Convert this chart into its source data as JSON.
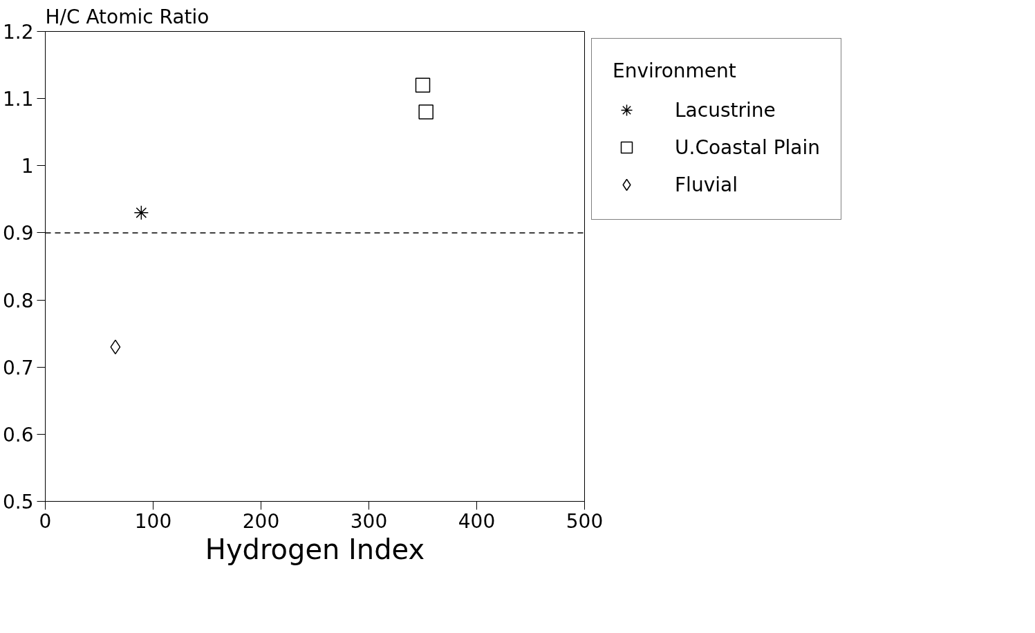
{
  "chart_data": {
    "type": "scatter",
    "xlabel": "Hydrogen Index",
    "ylabel": "H/C Atomic Ratio",
    "legend_title": "Environment",
    "legend": "right",
    "grid": false,
    "xlim": [
      0,
      500
    ],
    "xticks": [
      0,
      100,
      200,
      300,
      400,
      500
    ],
    "ylim": [
      0.5,
      1.2
    ],
    "yticks": [
      0.5,
      0.6,
      0.7,
      0.8,
      0.9,
      1,
      1.1,
      1.2
    ],
    "series": [
      {
        "name": "Lacustrine",
        "color": "#000000",
        "marker": "cross",
        "x": [
          89
        ],
        "values": [
          0.93
        ]
      },
      {
        "name": "U.Coastal Plain",
        "color": "#000000",
        "marker": "square",
        "x": [
          350,
          353
        ],
        "values": [
          1.12,
          1.08
        ]
      },
      {
        "name": "Fluvial",
        "color": "#000000",
        "marker": "diamond",
        "x": [
          65
        ],
        "values": [
          0.73
        ]
      }
    ],
    "ref_lines": [
      {
        "axis": "y",
        "value": 0.9,
        "color": "#000000",
        "line_style": "dashed"
      }
    ]
  }
}
